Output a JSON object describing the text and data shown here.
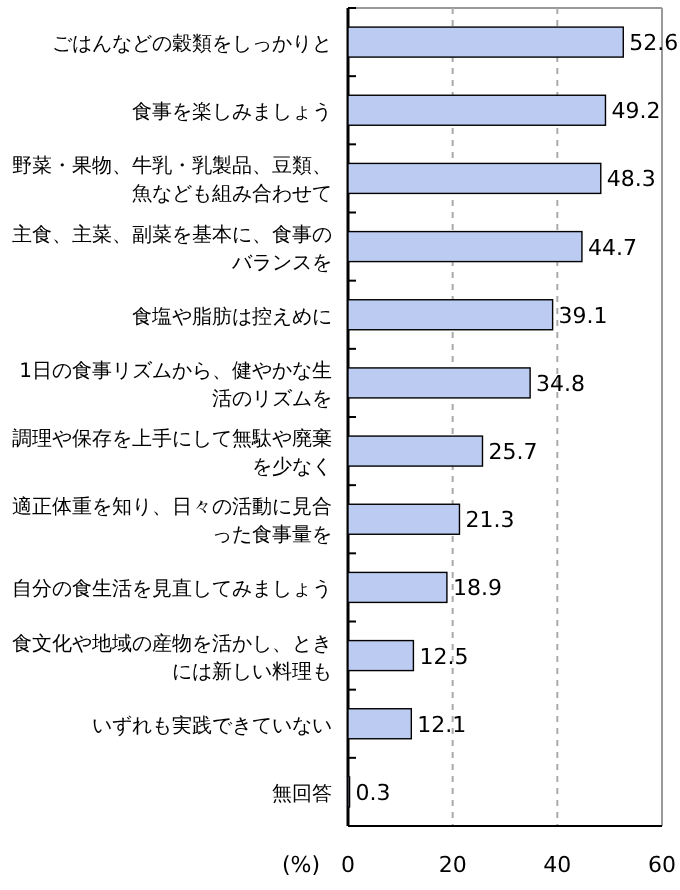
{
  "chart_data": {
    "type": "bar",
    "orientation": "horizontal",
    "xlabel": "(%)",
    "categories": [
      "ごはんなどの穀類をしっかりと",
      "食事を楽しみましょう",
      "野菜・果物、牛乳・乳製品、豆類、魚なども組み合わせて",
      "主食、主菜、副菜を基本に、食事のバランスを",
      "食塩や脂肪は控えめに",
      "1日の食事リズムから、健やかな生活のリズムを",
      "調理や保存を上手にして無駄や廃棄を少なく",
      "適正体重を知り、日々の活動に見合った食事量を",
      "自分の食生活を見直してみましょう",
      "食文化や地域の産物を活かし、ときには新しい料理も",
      "いずれも実践できていない",
      "無回答"
    ],
    "values": [
      52.6,
      49.2,
      48.3,
      44.7,
      39.1,
      34.8,
      25.7,
      21.3,
      18.9,
      12.5,
      12.1,
      0.3
    ],
    "color": "#bccbf2",
    "data_labels": true,
    "xlim": [
      0,
      60
    ],
    "xticks": [
      0,
      20,
      40,
      60
    ],
    "grid": "x"
  }
}
